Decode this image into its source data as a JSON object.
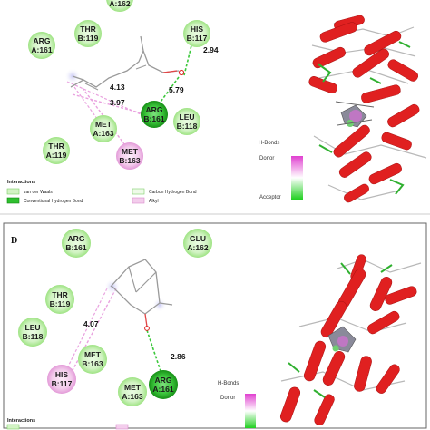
{
  "panel_top": {
    "residues": [
      {
        "id": "a162",
        "l1": "",
        "l2": "A:162",
        "type": "vdw"
      },
      {
        "id": "arg-a161",
        "l1": "ARG",
        "l2": "A:161",
        "type": "vdw"
      },
      {
        "id": "thr-b119",
        "l1": "THR",
        "l2": "B:119",
        "type": "vdw"
      },
      {
        "id": "his-b117",
        "l1": "HIS",
        "l2": "B:117",
        "type": "vdw"
      },
      {
        "id": "arg-b161",
        "l1": "ARG",
        "l2": "B:161",
        "type": "hbond"
      },
      {
        "id": "leu-b118",
        "l1": "LEU",
        "l2": "B:118",
        "type": "vdw"
      },
      {
        "id": "met-a163",
        "l1": "MET",
        "l2": "A:163",
        "type": "vdw"
      },
      {
        "id": "thr-a119",
        "l1": "THR",
        "l2": "A:119",
        "type": "vdw"
      },
      {
        "id": "met-b163",
        "l1": "MET",
        "l2": "B:163",
        "type": "alkyl"
      }
    ],
    "distances": [
      "2.94",
      "5.79",
      "4.13",
      "3.97"
    ],
    "legend": {
      "title": "Interactions",
      "items": [
        "van der Waals",
        "Conventional Hydrogen Bond",
        "Carbon Hydrogen Bond",
        "Alkyl"
      ]
    },
    "hbonds": {
      "title": "H-Bonds",
      "donor": "Donor",
      "acceptor": "Acceptor"
    }
  },
  "panel_bottom": {
    "label": "D",
    "residues": [
      {
        "id": "arg-b161",
        "l1": "ARG",
        "l2": "B:161",
        "type": "vdw"
      },
      {
        "id": "glu-a162",
        "l1": "GLU",
        "l2": "A:162",
        "type": "vdw"
      },
      {
        "id": "thr-b119",
        "l1": "THR",
        "l2": "B:119",
        "type": "vdw"
      },
      {
        "id": "leu-b118",
        "l1": "LEU",
        "l2": "B:118",
        "type": "vdw"
      },
      {
        "id": "met-b163",
        "l1": "MET",
        "l2": "B:163",
        "type": "vdw"
      },
      {
        "id": "his-b117",
        "l1": "HIS",
        "l2": "B:117",
        "type": "alkyl"
      },
      {
        "id": "met-a163",
        "l1": "MET",
        "l2": "A:163",
        "type": "vdw"
      },
      {
        "id": "arg-a161",
        "l1": "ARG",
        "l2": "A:161",
        "type": "hbond"
      }
    ],
    "distances": [
      "4.07",
      "2.86"
    ],
    "legend": {
      "title": "Interactions"
    },
    "hbonds": {
      "title": "H-Bonds",
      "donor": "Donor"
    }
  },
  "colors": {
    "vdw_fill": "#d6f5c9",
    "vdw_ring": "#9be07f",
    "hbond_fill": "#39c839",
    "hbond_ring": "#138a13",
    "alkyl_fill": "#f5d3ef",
    "alkyl_ring": "#e39ad8",
    "helix": "#e02020",
    "divider": "#555555"
  }
}
